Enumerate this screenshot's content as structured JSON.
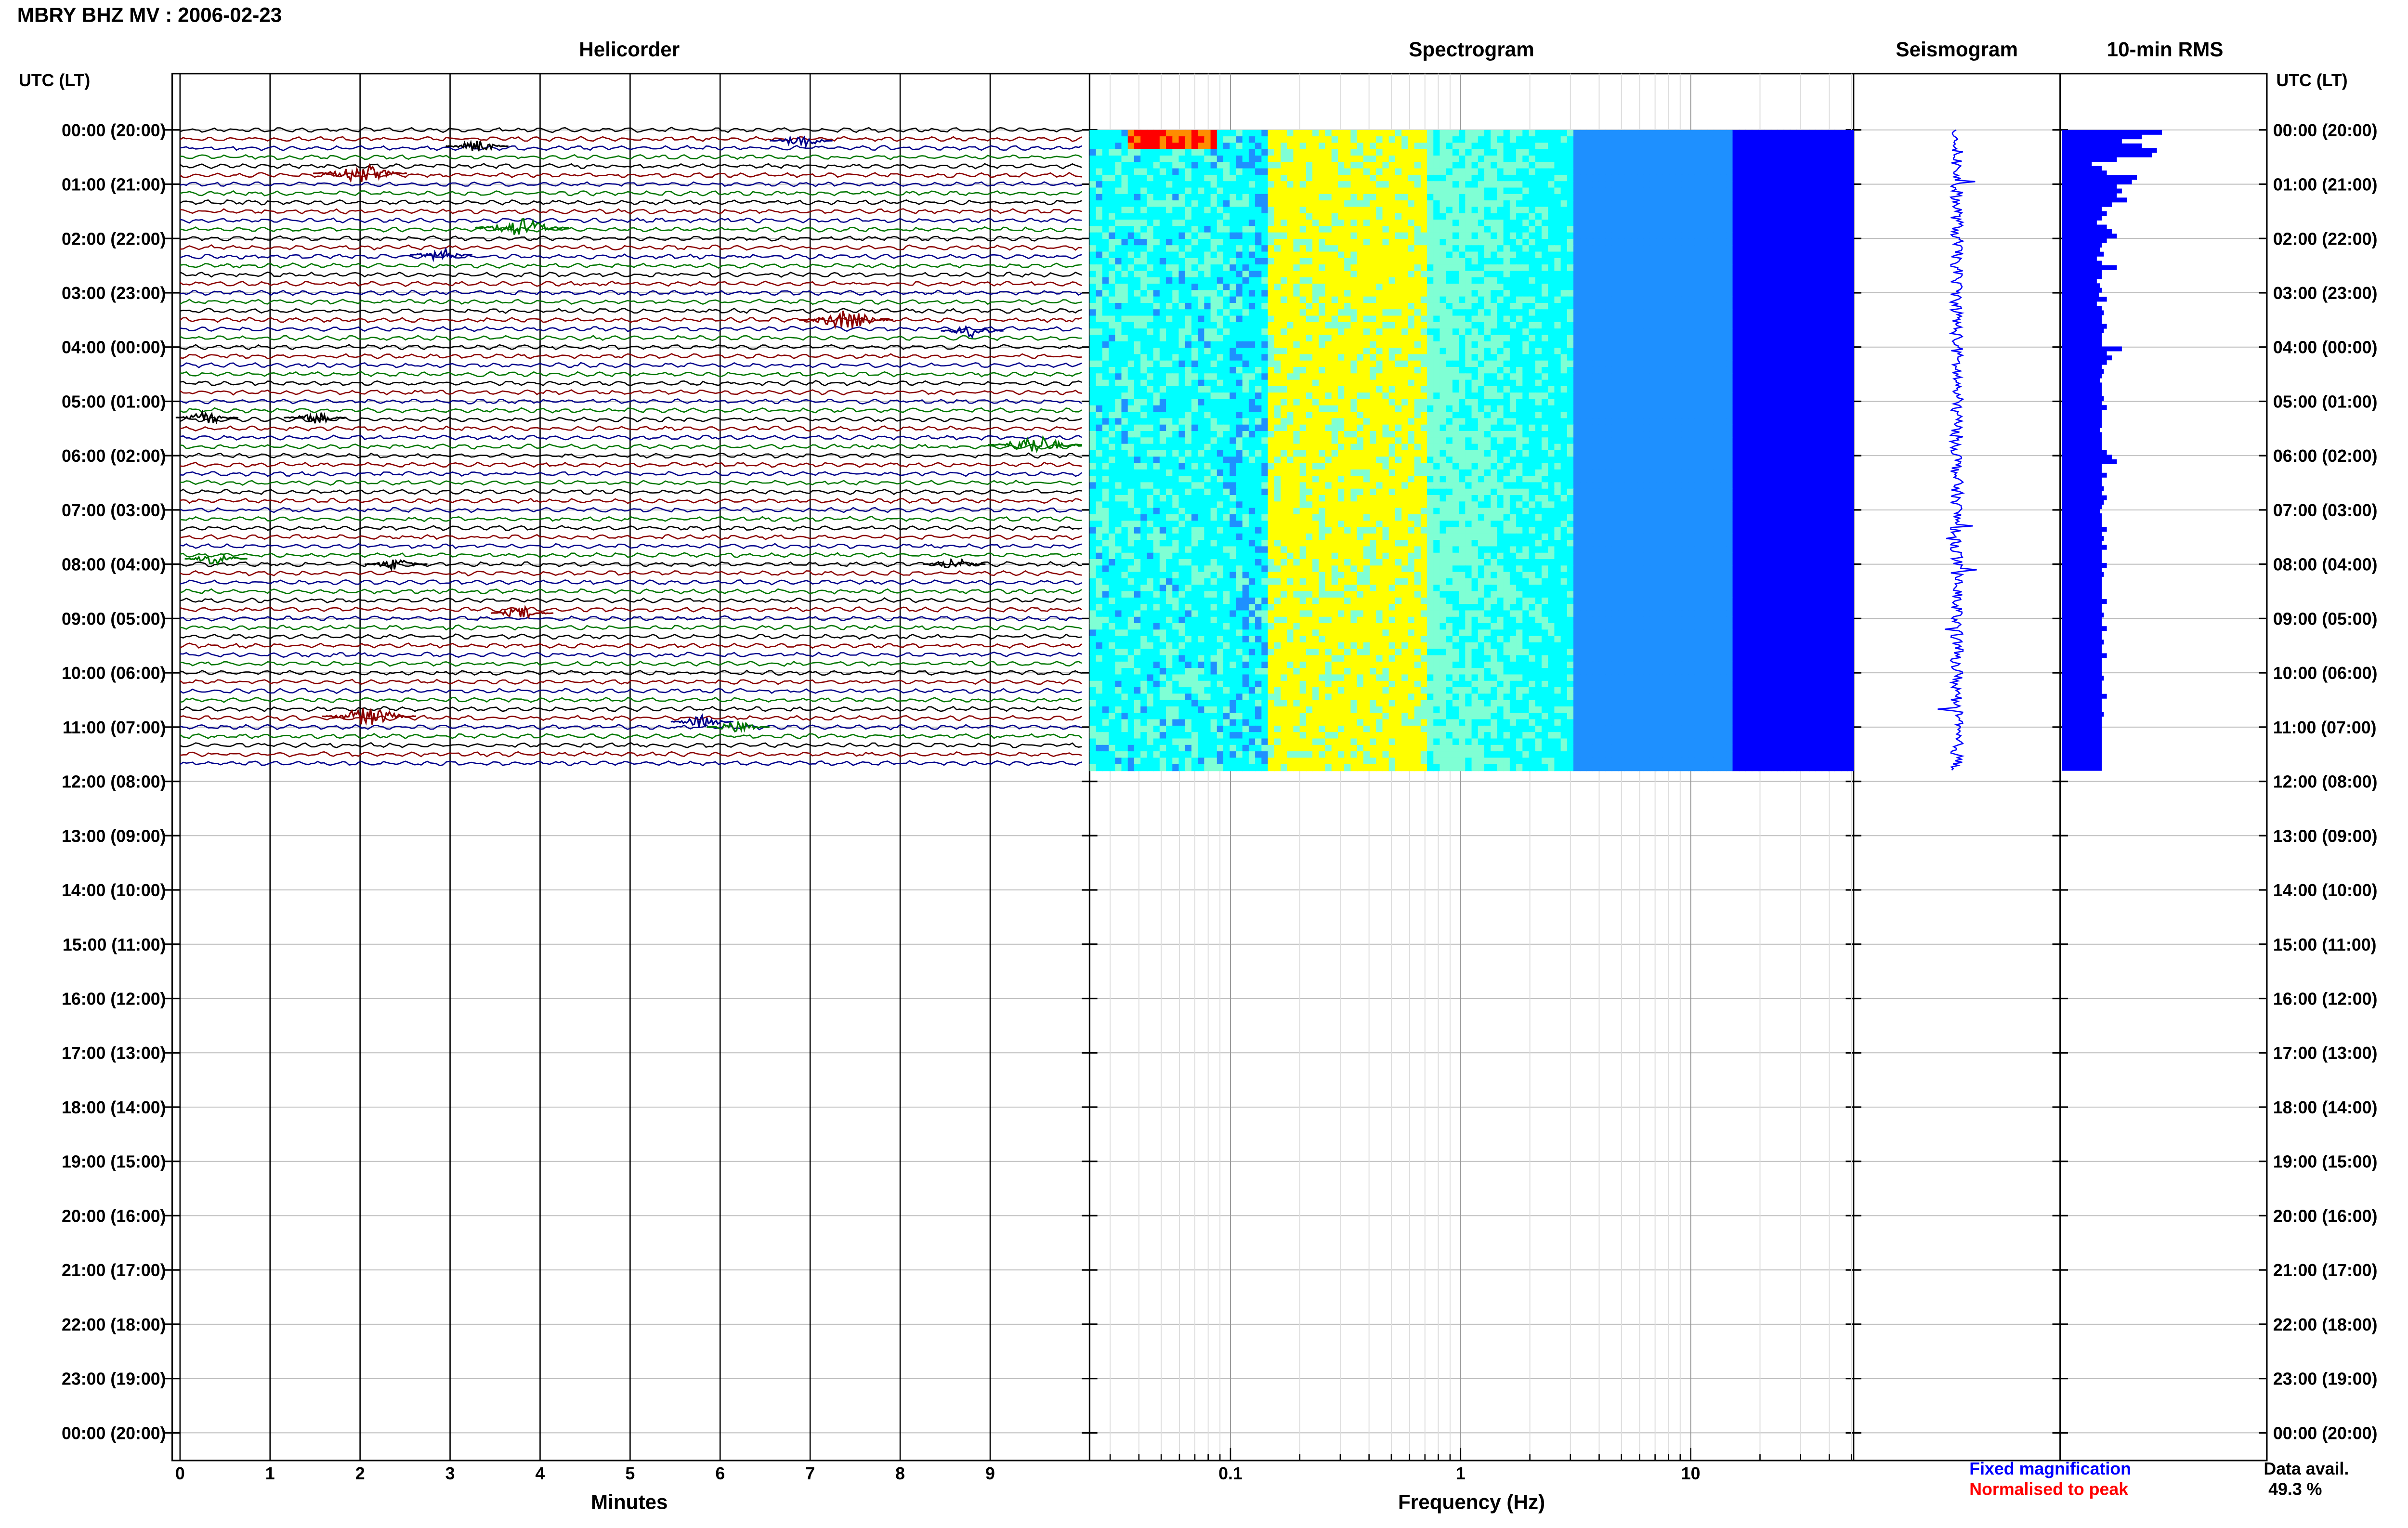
{
  "title": "MBRY BHZ MV : 2006-02-23",
  "panels": {
    "helicorder": "Helicorder",
    "spectrogram": "Spectrogram",
    "seismogram": "Seismogram",
    "rms": "10-min RMS"
  },
  "utc_label": "UTC (LT)",
  "xlabels": {
    "minutes": "Minutes",
    "frequency": "Frequency (Hz)"
  },
  "legend": {
    "fixed": "Fixed magnification",
    "normalised": "Normalised to peak"
  },
  "data_avail": {
    "label": "Data avail.",
    "value": "49.3 %"
  },
  "colors": {
    "trace_black": "#000000",
    "trace_red": "#8b0000",
    "trace_blue": "#00008b",
    "trace_green": "#007700",
    "rms_blue": "#0000ff",
    "legend_fixed": "#0000ff",
    "legend_normalised": "#ff0000"
  },
  "chart_data": [
    {
      "type": "line",
      "title": "Helicorder",
      "xlabel": "Minutes",
      "x_ticks": [
        "0",
        "1",
        "2",
        "3",
        "4",
        "5",
        "6",
        "7",
        "8",
        "9"
      ],
      "xlim": [
        0,
        10
      ],
      "time_labels": [
        "00:00 (20:00)",
        "01:00 (21:00)",
        "02:00 (22:00)",
        "03:00 (23:00)",
        "04:00 (00:00)",
        "05:00 (01:00)",
        "06:00 (02:00)",
        "07:00 (03:00)",
        "08:00 (04:00)",
        "09:00 (05:00)",
        "10:00 (06:00)",
        "11:00 (07:00)",
        "12:00 (08:00)",
        "13:00 (09:00)",
        "14:00 (10:00)",
        "15:00 (11:00)",
        "16:00 (12:00)",
        "17:00 (13:00)",
        "18:00 (14:00)",
        "19:00 (15:00)",
        "20:00 (16:00)",
        "21:00 (17:00)",
        "22:00 (18:00)",
        "23:00 (19:00)",
        "00:00 (20:00)"
      ],
      "trace_color_cycle": [
        "black",
        "red",
        "blue",
        "green"
      ],
      "data_hours": 11.8,
      "events": [
        {
          "hour": 0.3,
          "minute": 3.3,
          "color": "black",
          "amplitude": "medium"
        },
        {
          "hour": 0.2,
          "minute": 6.9,
          "color": "blue",
          "amplitude": "medium"
        },
        {
          "hour": 0.8,
          "minute": 2.0,
          "color": "red",
          "amplitude": "large"
        },
        {
          "hour": 1.8,
          "minute": 3.8,
          "color": "green",
          "amplitude": "large"
        },
        {
          "hour": 2.3,
          "minute": 2.9,
          "color": "blue",
          "amplitude": "medium"
        },
        {
          "hour": 3.5,
          "minute": 7.4,
          "color": "red",
          "amplitude": "large"
        },
        {
          "hour": 3.7,
          "minute": 8.8,
          "color": "blue",
          "amplitude": "medium"
        },
        {
          "hour": 5.3,
          "minute": 0.3,
          "color": "black",
          "amplitude": "medium"
        },
        {
          "hour": 5.3,
          "minute": 1.5,
          "color": "black",
          "amplitude": "medium"
        },
        {
          "hour": 5.8,
          "minute": 9.5,
          "color": "green",
          "amplitude": "large"
        },
        {
          "hour": 7.9,
          "minute": 0.4,
          "color": "green",
          "amplitude": "medium"
        },
        {
          "hour": 8.0,
          "minute": 2.4,
          "color": "black",
          "amplitude": "medium"
        },
        {
          "hour": 8.0,
          "minute": 8.6,
          "color": "black",
          "amplitude": "medium"
        },
        {
          "hour": 8.9,
          "minute": 3.8,
          "color": "red",
          "amplitude": "medium"
        },
        {
          "hour": 10.8,
          "minute": 2.1,
          "color": "red",
          "amplitude": "large"
        },
        {
          "hour": 11.0,
          "minute": 6.2,
          "color": "green",
          "amplitude": "medium"
        },
        {
          "hour": 10.9,
          "minute": 5.8,
          "color": "blue",
          "amplitude": "medium"
        }
      ]
    },
    {
      "type": "heatmap",
      "title": "Spectrogram",
      "xlabel": "Frequency (Hz)",
      "x_scale": "log",
      "x_ticks": [
        "0.1",
        "1",
        "10"
      ],
      "xlim": [
        0.025,
        50
      ],
      "data_hours": 11.8,
      "peak_band_hz": [
        0.15,
        0.7
      ],
      "colormap": [
        "#00008b",
        "#0000ff",
        "#1e90ff",
        "#00ffff",
        "#7fffd4",
        "#ffff00",
        "#ff8c00",
        "#ff0000"
      ]
    },
    {
      "type": "line",
      "title": "Seismogram",
      "data_hours": 11.8
    },
    {
      "type": "bar",
      "title": "10-min RMS",
      "orientation": "horizontal",
      "data_hours": 11.8,
      "values": [
        1.0,
        0.8,
        0.6,
        0.8,
        0.95,
        0.9,
        0.55,
        0.3,
        0.4,
        0.45,
        0.75,
        0.7,
        0.55,
        0.6,
        0.55,
        0.65,
        0.5,
        0.4,
        0.45,
        0.4,
        0.35,
        0.45,
        0.5,
        0.55,
        0.45,
        0.4,
        0.38,
        0.42,
        0.35,
        0.4,
        0.55,
        0.4,
        0.4,
        0.35,
        0.38,
        0.4,
        0.37,
        0.45,
        0.35,
        0.4,
        0.42,
        0.4,
        0.4,
        0.45,
        0.42,
        0.4,
        0.4,
        0.4,
        0.6,
        0.45,
        0.5,
        0.45,
        0.4,
        0.42,
        0.4,
        0.38,
        0.4,
        0.4,
        0.4,
        0.42,
        0.4,
        0.45,
        0.4,
        0.4,
        0.4,
        0.4,
        0.38,
        0.4,
        0.4,
        0.4,
        0.4,
        0.45,
        0.5,
        0.55,
        0.4,
        0.4,
        0.45,
        0.4,
        0.4,
        0.42,
        0.4,
        0.45,
        0.42,
        0.4,
        0.38,
        0.4,
        0.4,
        0.4,
        0.45,
        0.4,
        0.42,
        0.4,
        0.45,
        0.4,
        0.4,
        0.4,
        0.45,
        0.4,
        0.42,
        0.4,
        0.4,
        0.4,
        0.4,
        0.4,
        0.45,
        0.4,
        0.4,
        0.42,
        0.4,
        0.4,
        0.45,
        0.4,
        0.4,
        0.42,
        0.4,
        0.4,
        0.45,
        0.4,
        0.4,
        0.4,
        0.4,
        0.42,
        0.4,
        0.4,
        0.4,
        0.45,
        0.4,
        0.4,
        0.4,
        0.42,
        0.4,
        0.4,
        0.4,
        0.4,
        0.4,
        0.4,
        0.4,
        0.4,
        0.4,
        0.4,
        0.4,
        0.4
      ]
    }
  ]
}
